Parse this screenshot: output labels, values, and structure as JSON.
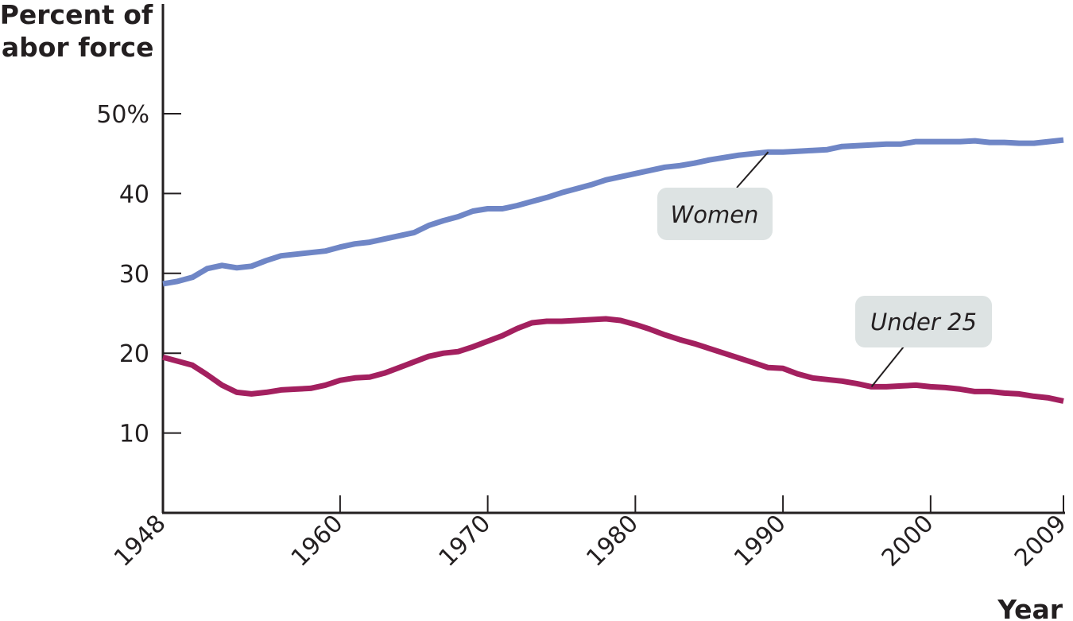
{
  "chart_data": {
    "type": "line",
    "title": "",
    "xlabel": "Year",
    "ylabel_lines": [
      "Percent of",
      "labor force"
    ],
    "xlim": [
      1948,
      2009
    ],
    "ylim": [
      0,
      50
    ],
    "x_ticks": [
      1948,
      1960,
      1970,
      1980,
      1990,
      2000,
      2009
    ],
    "x_tick_labels": [
      "1948",
      "1960",
      "1970",
      "1980",
      "1990",
      "2000",
      "2009"
    ],
    "y_ticks": [
      10,
      20,
      30,
      40,
      50
    ],
    "y_tick_labels": [
      "10",
      "20",
      "30",
      "40",
      "50%"
    ],
    "grid": false,
    "legend": "none (series labeled directly on chart)",
    "x": [
      1948,
      1949,
      1950,
      1951,
      1952,
      1953,
      1954,
      1955,
      1956,
      1957,
      1958,
      1959,
      1960,
      1961,
      1962,
      1963,
      1964,
      1965,
      1966,
      1967,
      1968,
      1969,
      1970,
      1971,
      1972,
      1973,
      1974,
      1975,
      1976,
      1977,
      1978,
      1979,
      1980,
      1981,
      1982,
      1983,
      1984,
      1985,
      1986,
      1987,
      1988,
      1989,
      1990,
      1991,
      1992,
      1993,
      1994,
      1995,
      1996,
      1997,
      1998,
      1999,
      2000,
      2001,
      2002,
      2003,
      2004,
      2005,
      2006,
      2007,
      2008,
      2009
    ],
    "series": [
      {
        "name": "Women",
        "color": "#6f86c6",
        "label_box_color": "#dde3e3",
        "values": [
          28.7,
          29.0,
          29.5,
          30.6,
          31.0,
          30.7,
          30.9,
          31.6,
          32.2,
          32.4,
          32.6,
          32.8,
          33.3,
          33.7,
          33.9,
          34.3,
          34.7,
          35.1,
          36.0,
          36.6,
          37.1,
          37.8,
          38.1,
          38.1,
          38.5,
          39.0,
          39.5,
          40.1,
          40.6,
          41.1,
          41.7,
          42.1,
          42.5,
          42.9,
          43.3,
          43.5,
          43.8,
          44.2,
          44.5,
          44.8,
          45.0,
          45.2,
          45.2,
          45.3,
          45.4,
          45.5,
          45.9,
          46.0,
          46.1,
          46.2,
          46.2,
          46.5,
          46.5,
          46.5,
          46.5,
          46.6,
          46.4,
          46.4,
          46.3,
          46.3,
          46.5,
          46.7
        ]
      },
      {
        "name": "Under 25",
        "color": "#a3205f",
        "label_box_color": "#dde3e3",
        "values": [
          19.5,
          19.0,
          18.5,
          17.3,
          16.0,
          15.1,
          14.9,
          15.1,
          15.4,
          15.5,
          15.6,
          16.0,
          16.6,
          16.9,
          17.0,
          17.5,
          18.2,
          18.9,
          19.6,
          20.0,
          20.2,
          20.8,
          21.5,
          22.2,
          23.1,
          23.8,
          24.0,
          24.0,
          24.1,
          24.2,
          24.3,
          24.1,
          23.6,
          23.0,
          22.3,
          21.7,
          21.2,
          20.6,
          20.0,
          19.4,
          18.8,
          18.2,
          18.1,
          17.4,
          16.9,
          16.7,
          16.5,
          16.2,
          15.8,
          15.8,
          15.9,
          16.0,
          15.8,
          15.7,
          15.5,
          15.2,
          15.2,
          15.0,
          14.9,
          14.6,
          14.4,
          14.0
        ]
      }
    ],
    "annotations": [
      {
        "text": "Women",
        "series": "Women",
        "points_to_x": 1989
      },
      {
        "text": "Under 25",
        "series": "Under 25",
        "points_to_x": 1996
      }
    ]
  }
}
